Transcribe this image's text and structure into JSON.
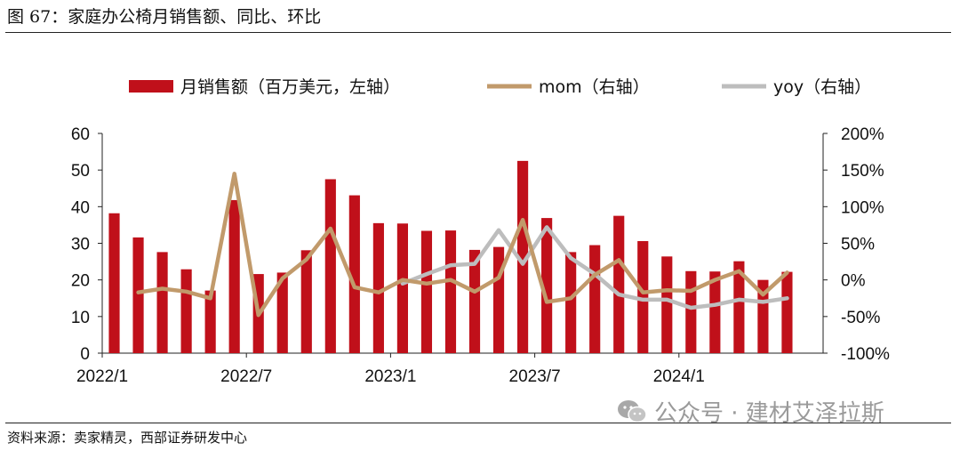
{
  "figure": {
    "title": "图 67：家庭办公椅月销售额、同比、环比",
    "source": "资料来源：卖家精灵，西部证券研发中心",
    "watermark": "公众号 · 建材艾泽拉斯",
    "watermark_icon": "wechat-icon"
  },
  "colors": {
    "bar": "#c0101a",
    "mom": "#c19a6b",
    "yoy": "#bdbdbd"
  },
  "chart_data": {
    "type": "bar",
    "categories": [
      "2022/1",
      "2022/2",
      "2022/3",
      "2022/4",
      "2022/5",
      "2022/6",
      "2022/7",
      "2022/8",
      "2022/9",
      "2022/10",
      "2022/11",
      "2022/12",
      "2023/1",
      "2023/2",
      "2023/3",
      "2023/4",
      "2023/5",
      "2023/6",
      "2023/7",
      "2023/8",
      "2023/9",
      "2023/10",
      "2023/11",
      "2023/12",
      "2024/1",
      "2024/2",
      "2024/3",
      "2024/4",
      "2024/5",
      "2024/6"
    ],
    "x_tick_labels": [
      "2022/1",
      "2022/7",
      "2023/1",
      "2023/7",
      "2024/1"
    ],
    "y_left": {
      "ticks": [
        "0",
        "10",
        "20",
        "30",
        "40",
        "50",
        "60"
      ],
      "range": [
        0,
        60
      ]
    },
    "y_right": {
      "ticks": [
        "-100%",
        "-50%",
        "0%",
        "50%",
        "100%",
        "150%",
        "200%"
      ],
      "range": [
        -100,
        200
      ]
    },
    "legend": [
      "月销售额（百万美元，左轴）",
      "mom（右轴）",
      "yoy（右轴）"
    ],
    "legend_position": "top",
    "grid": false,
    "series": [
      {
        "name": "月销售额（百万美元，左轴）",
        "type": "bar",
        "axis": "left",
        "values": [
          38.2,
          31.6,
          27.6,
          22.9,
          17.1,
          41.8,
          21.6,
          22.0,
          28.1,
          47.5,
          43.1,
          35.5,
          35.4,
          33.4,
          33.5,
          28.2,
          29.0,
          52.5,
          36.9,
          27.6,
          29.5,
          37.5,
          30.6,
          26.4,
          22.4,
          22.3,
          25.1,
          20.0,
          22.2,
          null
        ]
      },
      {
        "name": "mom（右轴）",
        "type": "line",
        "axis": "right",
        "values": [
          null,
          -17,
          -12,
          -16,
          -25,
          145,
          -48,
          2,
          28,
          70,
          -10,
          -17,
          0,
          -5,
          0,
          -16,
          3,
          82,
          -30,
          -25,
          7,
          27,
          -17,
          -14,
          -15,
          0,
          12,
          -20,
          10,
          null
        ]
      },
      {
        "name": "yoy（右轴）",
        "type": "line",
        "axis": "right",
        "values": [
          null,
          null,
          null,
          null,
          null,
          null,
          null,
          null,
          null,
          null,
          null,
          null,
          -5,
          8,
          20,
          22,
          68,
          22,
          72,
          30,
          8,
          -20,
          -27,
          -27,
          -38,
          -34,
          -27,
          -30,
          -25,
          null
        ]
      }
    ]
  }
}
